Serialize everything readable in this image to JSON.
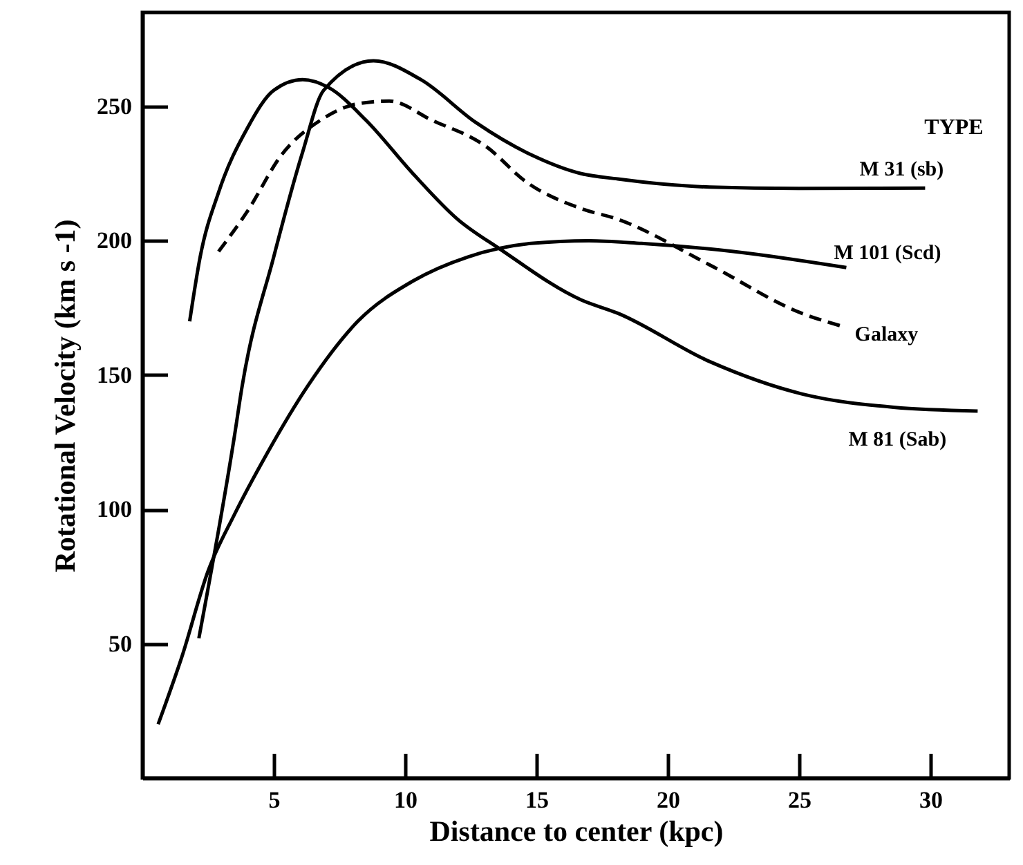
{
  "chart_data": {
    "type": "line",
    "xlabel": "Distance to center (kpc)",
    "ylabel": "Rotational Velocity (km s -1)",
    "legend_title": "TYPE",
    "xlim": [
      0,
      33
    ],
    "ylim": [
      0,
      285
    ],
    "xticks": [
      5,
      10,
      15,
      20,
      25,
      30
    ],
    "yticks": [
      50,
      100,
      150,
      200,
      250
    ],
    "grid": false,
    "line_style": "solid",
    "marker": "none",
    "series": [
      {
        "name": "M 31  (sb)",
        "color": "#000000",
        "x": [
          2.15,
          3.5,
          3.8,
          5.0,
          6.1,
          6.9,
          8.8,
          10.6,
          12.7,
          14.8,
          16.7,
          18.1,
          21.6,
          25,
          29.8
        ],
        "values": [
          52,
          127,
          146,
          194,
          233,
          256,
          267,
          260,
          244,
          232,
          225,
          223,
          220,
          219.5,
          219.6
        ]
      },
      {
        "name": "M 101  (Scd)",
        "color": "#000000",
        "x": [
          0.6,
          1.5,
          2.5,
          3.5,
          4.7,
          6.3,
          8.2,
          10.3,
          12.4,
          14.8,
          17,
          19.0,
          22.5,
          26.8
        ],
        "values": [
          20,
          45,
          77,
          98,
          120,
          146,
          170,
          185,
          194,
          199,
          200,
          199,
          196,
          190
        ]
      },
      {
        "name": "Galaxy",
        "color": "#000000",
        "line_style": "dashed",
        "x": [
          2.9,
          4.0,
          5.3,
          6.8,
          8.2,
          9.4,
          11.0,
          13.1,
          14.6,
          16.7,
          18.1,
          21.6,
          25.1,
          26.7
        ],
        "values": [
          196,
          211,
          232,
          245,
          251,
          252,
          245,
          235,
          222,
          212,
          208,
          191,
          173,
          168
        ]
      },
      {
        "name": "M 81  (Sab)",
        "color": "#000000",
        "x": [
          1.8,
          2.2,
          2.9,
          4.0,
          5.0,
          6.1,
          7.1,
          8.5,
          10.3,
          12.0,
          13.6,
          16.7,
          18.1,
          21.6,
          25.1,
          28.6,
          31.8
        ],
        "values": [
          170,
          194,
          218,
          242,
          256,
          260,
          257,
          245,
          225,
          208,
          197,
          178,
          173,
          155,
          143,
          138,
          136.6
        ]
      }
    ]
  }
}
